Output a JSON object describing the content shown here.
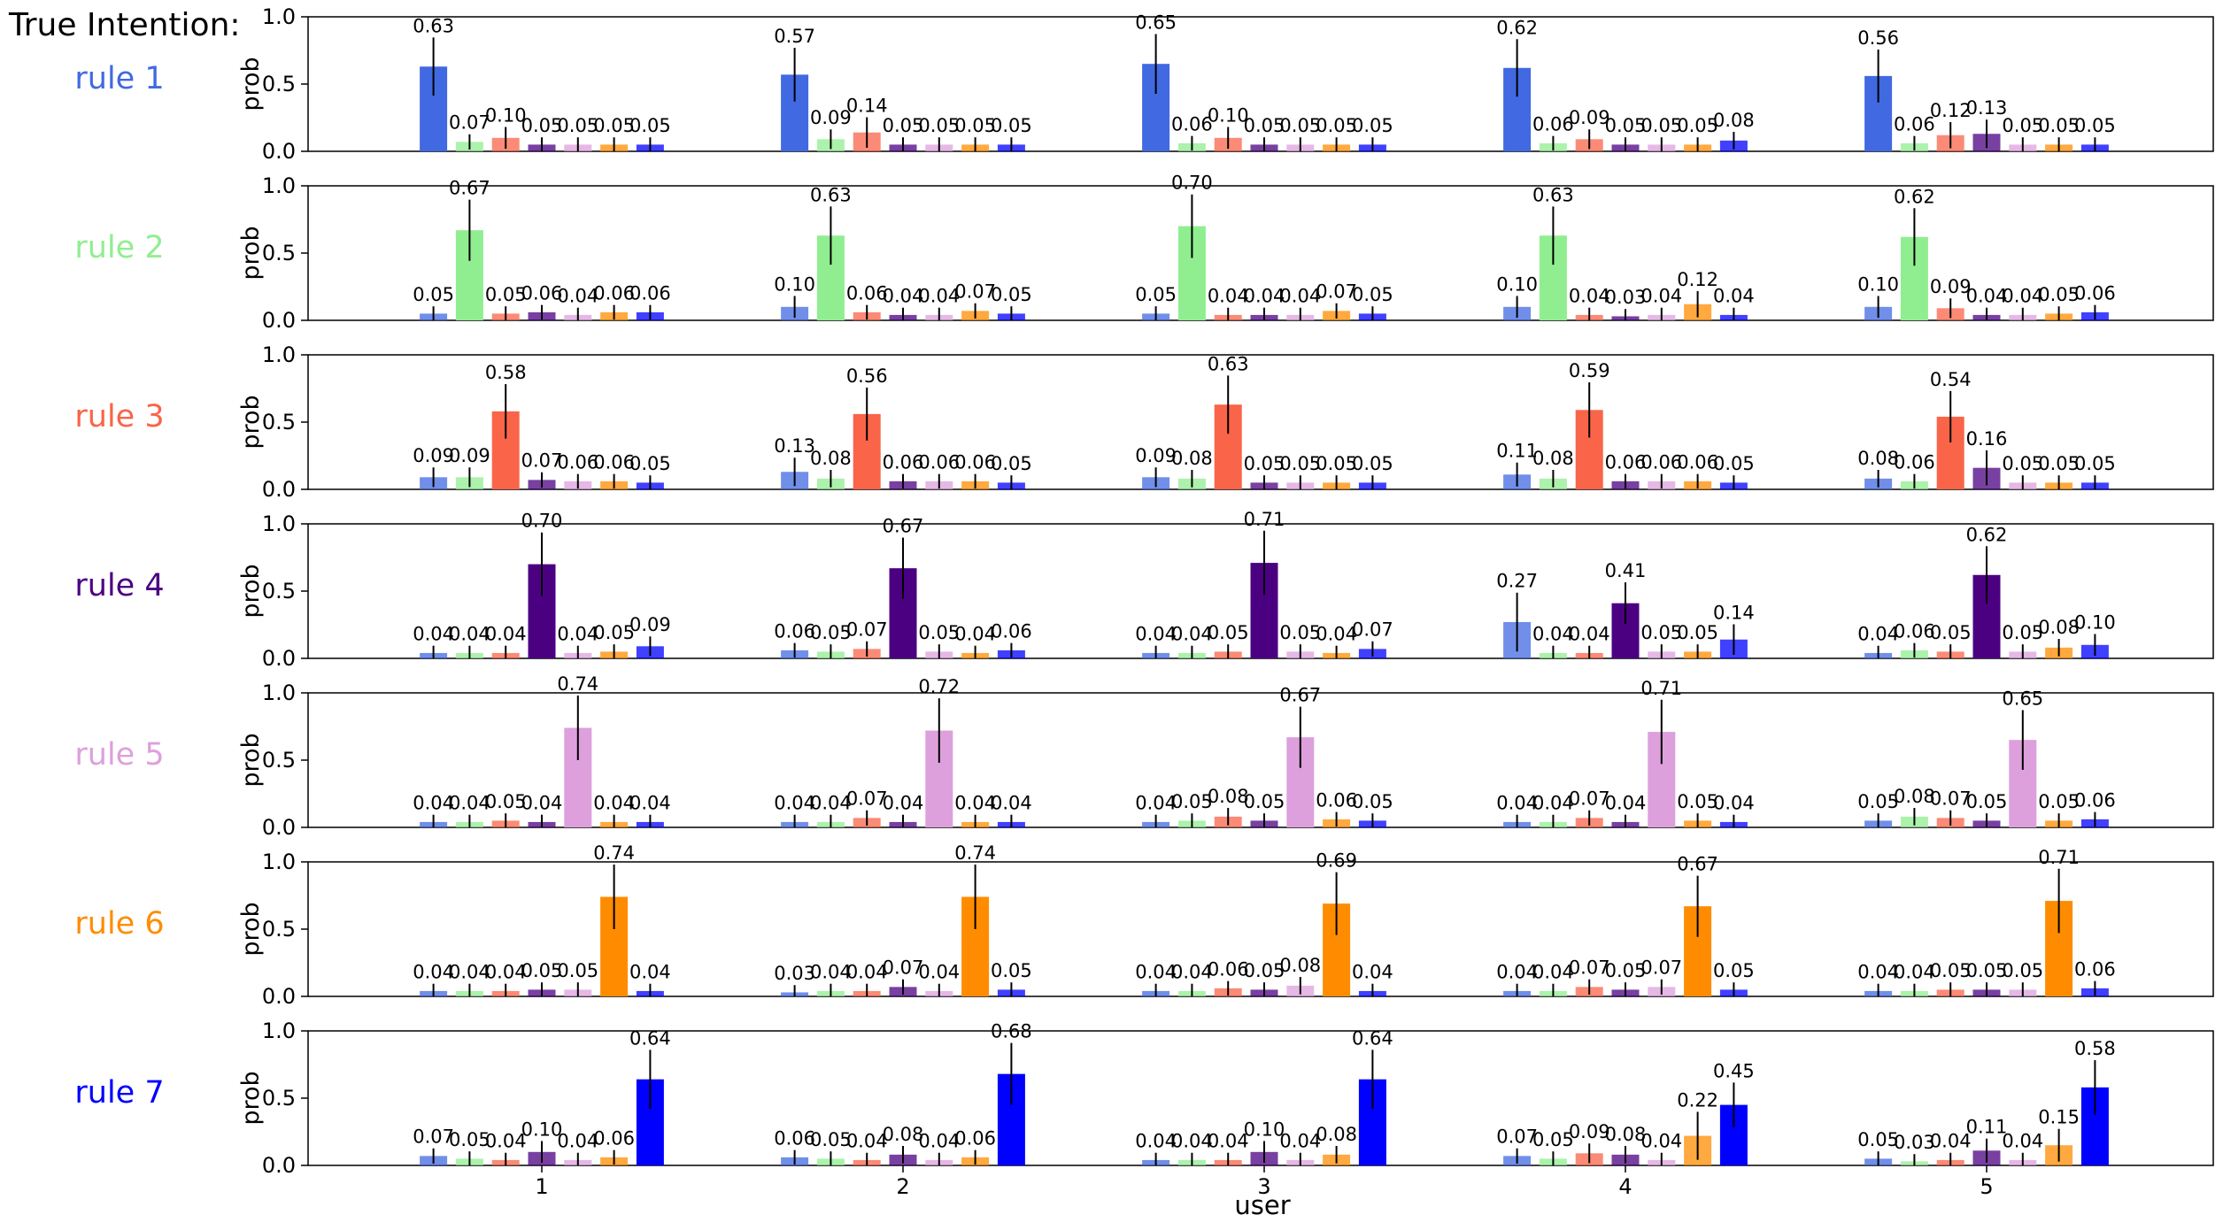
{
  "header": {
    "title": "True Intention:"
  },
  "colors": [
    "#4169e1",
    "#90ee90",
    "#fa6448",
    "#4b0082",
    "#dda0dd",
    "#ff8c00",
    "#0000ff"
  ],
  "chart_data": {
    "type": "bar",
    "xlabel": "user",
    "ylabel": "prob",
    "ylim": [
      0.0,
      1.0
    ],
    "yticks": [
      "0.0",
      "0.5",
      "1.0"
    ],
    "categories": [
      "1",
      "2",
      "3",
      "4",
      "5"
    ],
    "series_names": [
      "rule 1",
      "rule 2",
      "rule 3",
      "rule 4",
      "rule 5",
      "rule 6",
      "rule 7"
    ],
    "panels": [
      {
        "label": "rule 1",
        "values": [
          [
            0.63,
            0.07,
            0.1,
            0.05,
            0.05,
            0.05,
            0.05
          ],
          [
            0.57,
            0.09,
            0.14,
            0.05,
            0.05,
            0.05,
            0.05
          ],
          [
            0.65,
            0.06,
            0.1,
            0.05,
            0.05,
            0.05,
            0.05
          ],
          [
            0.62,
            0.06,
            0.09,
            0.05,
            0.05,
            0.05,
            0.08
          ],
          [
            0.56,
            0.06,
            0.12,
            0.13,
            0.05,
            0.05,
            0.05
          ]
        ]
      },
      {
        "label": "rule 2",
        "values": [
          [
            0.05,
            0.67,
            0.05,
            0.06,
            0.04,
            0.06,
            0.06
          ],
          [
            0.1,
            0.63,
            0.06,
            0.04,
            0.04,
            0.07,
            0.05
          ],
          [
            0.05,
            0.7,
            0.04,
            0.04,
            0.04,
            0.07,
            0.05
          ],
          [
            0.1,
            0.63,
            0.04,
            0.03,
            0.04,
            0.12,
            0.04
          ],
          [
            0.1,
            0.62,
            0.09,
            0.04,
            0.04,
            0.05,
            0.06
          ]
        ]
      },
      {
        "label": "rule 3",
        "values": [
          [
            0.09,
            0.09,
            0.58,
            0.07,
            0.06,
            0.06,
            0.05
          ],
          [
            0.13,
            0.08,
            0.56,
            0.06,
            0.06,
            0.06,
            0.05
          ],
          [
            0.09,
            0.08,
            0.63,
            0.05,
            0.05,
            0.05,
            0.05
          ],
          [
            0.11,
            0.08,
            0.59,
            0.06,
            0.06,
            0.06,
            0.05
          ],
          [
            0.08,
            0.06,
            0.54,
            0.16,
            0.05,
            0.05,
            0.05
          ]
        ]
      },
      {
        "label": "rule 4",
        "values": [
          [
            0.04,
            0.04,
            0.04,
            0.7,
            0.04,
            0.05,
            0.09
          ],
          [
            0.06,
            0.05,
            0.07,
            0.67,
            0.05,
            0.04,
            0.06
          ],
          [
            0.04,
            0.04,
            0.05,
            0.71,
            0.05,
            0.04,
            0.07
          ],
          [
            0.27,
            0.04,
            0.04,
            0.41,
            0.05,
            0.05,
            0.14
          ],
          [
            0.04,
            0.06,
            0.05,
            0.62,
            0.05,
            0.08,
            0.1
          ]
        ]
      },
      {
        "label": "rule 5",
        "values": [
          [
            0.04,
            0.04,
            0.05,
            0.04,
            0.74,
            0.04,
            0.04
          ],
          [
            0.04,
            0.04,
            0.07,
            0.04,
            0.72,
            0.04,
            0.04
          ],
          [
            0.04,
            0.05,
            0.08,
            0.05,
            0.67,
            0.06,
            0.05
          ],
          [
            0.04,
            0.04,
            0.07,
            0.04,
            0.71,
            0.05,
            0.04
          ],
          [
            0.05,
            0.08,
            0.07,
            0.05,
            0.65,
            0.05,
            0.06
          ]
        ]
      },
      {
        "label": "rule 6",
        "values": [
          [
            0.04,
            0.04,
            0.04,
            0.05,
            0.05,
            0.74,
            0.04
          ],
          [
            0.03,
            0.04,
            0.04,
            0.07,
            0.04,
            0.74,
            0.05
          ],
          [
            0.04,
            0.04,
            0.06,
            0.05,
            0.08,
            0.69,
            0.04
          ],
          [
            0.04,
            0.04,
            0.07,
            0.05,
            0.07,
            0.67,
            0.05
          ],
          [
            0.04,
            0.04,
            0.05,
            0.05,
            0.05,
            0.71,
            0.06
          ]
        ]
      },
      {
        "label": "rule 7",
        "values": [
          [
            0.07,
            0.05,
            0.04,
            0.1,
            0.04,
            0.06,
            0.64
          ],
          [
            0.06,
            0.05,
            0.04,
            0.08,
            0.04,
            0.06,
            0.68
          ],
          [
            0.04,
            0.04,
            0.04,
            0.1,
            0.04,
            0.08,
            0.64
          ],
          [
            0.07,
            0.05,
            0.09,
            0.08,
            0.04,
            0.22,
            0.45
          ],
          [
            0.05,
            0.03,
            0.04,
            0.11,
            0.04,
            0.15,
            0.58
          ]
        ]
      }
    ]
  }
}
